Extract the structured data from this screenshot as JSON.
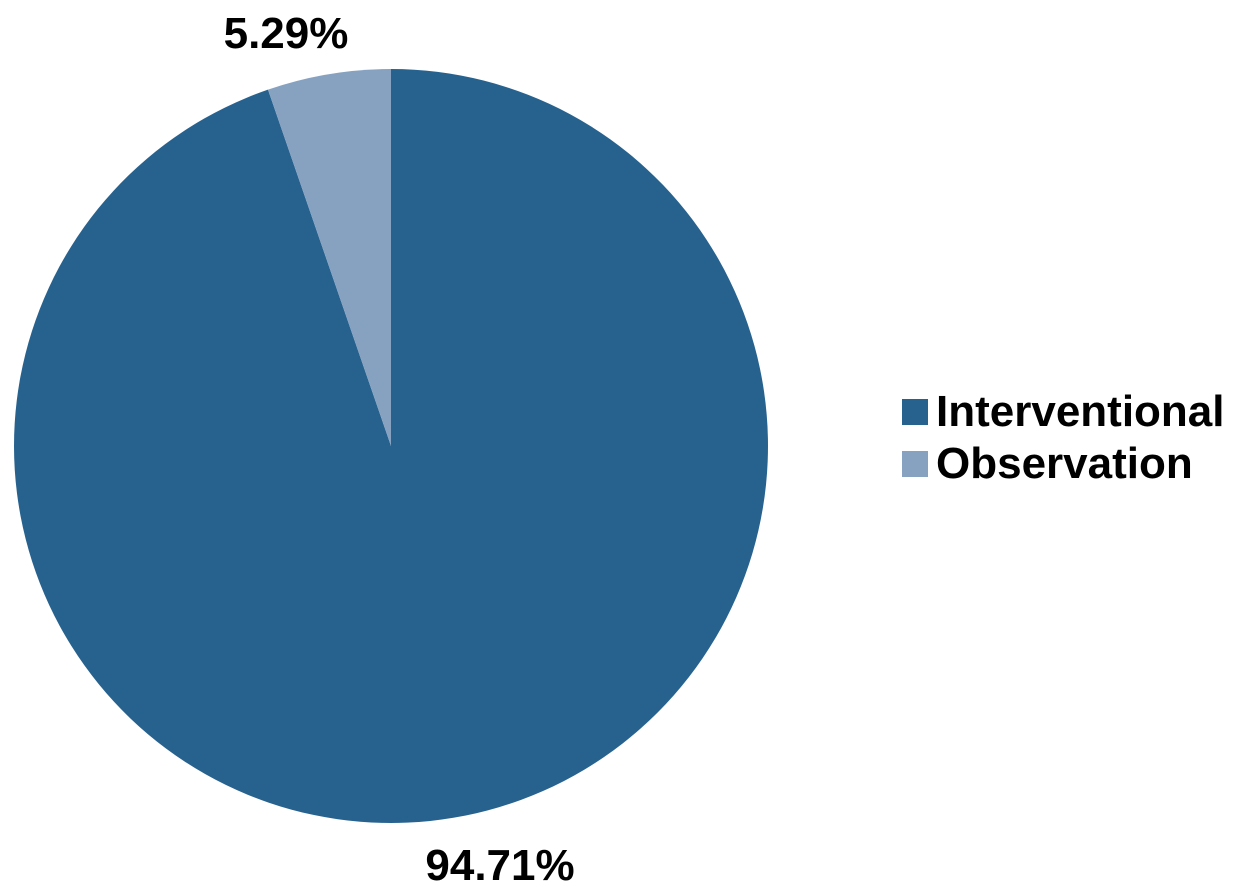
{
  "chart_data": {
    "type": "pie",
    "title": "",
    "start_angle_deg": 0,
    "direction": "clockwise",
    "slices": [
      {
        "name": "Interventional",
        "value": 94.71,
        "label": "94.71%",
        "color": "#27628f"
      },
      {
        "name": "Observation",
        "value": 5.29,
        "label": "5.29%",
        "color": "#87a2c0"
      }
    ],
    "legend": {
      "placement": "right",
      "items": [
        {
          "label": "Interventional",
          "color": "#27628f"
        },
        {
          "label": "Observation",
          "color": "#87a2c0"
        }
      ]
    }
  }
}
